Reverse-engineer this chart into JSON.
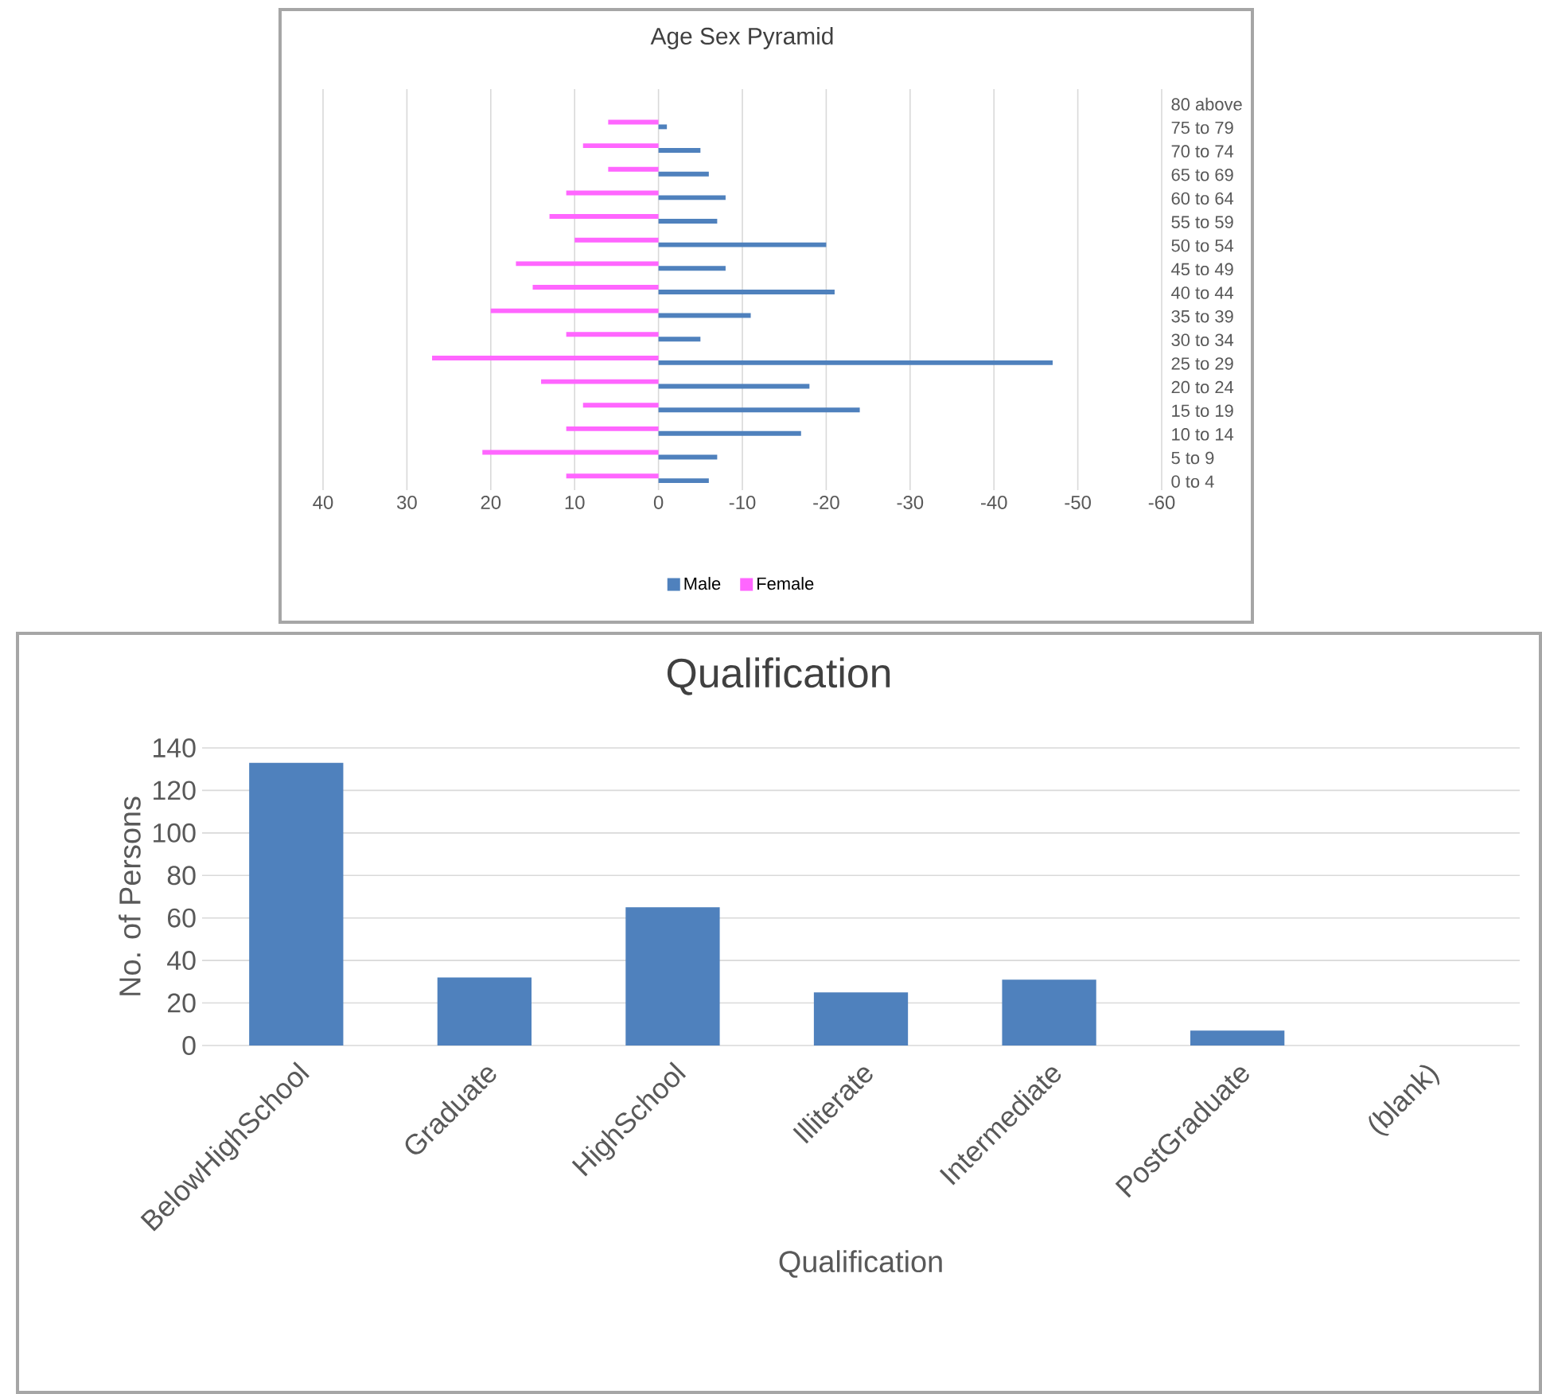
{
  "chart_data": [
    {
      "type": "bar",
      "orientation": "horizontal",
      "title": "Age Sex Pyramid",
      "categories": [
        "80 above",
        "75 to 79",
        "70 to 74",
        "65 to 69",
        "60 to 64",
        "55 to 59",
        "50 to 54",
        "45 to 49",
        "40 to 44",
        "35 to 39",
        "30 to 34",
        "25 to 29",
        "20 to 24",
        "15 to 19",
        "10 to 14",
        "5 to 9",
        "0 to 4"
      ],
      "series": [
        {
          "name": "Male",
          "color": "#4f81bd",
          "values": [
            0,
            -1,
            -5,
            -6,
            -8,
            -7,
            -20,
            -8,
            -21,
            -11,
            -5,
            -47,
            -18,
            -24,
            -17,
            -7,
            -6
          ]
        },
        {
          "name": "Female",
          "color": "#ff66ff",
          "values": [
            0,
            6,
            9,
            6,
            11,
            13,
            10,
            17,
            15,
            20,
            11,
            27,
            14,
            9,
            11,
            21,
            11
          ]
        }
      ],
      "xlim": [
        40,
        -60
      ],
      "xticks": [
        40,
        30,
        20,
        10,
        0,
        -10,
        -20,
        -30,
        -40,
        -50,
        -60
      ],
      "grid": "x",
      "legend": "bottom"
    },
    {
      "type": "bar",
      "title": "Qualification",
      "xlabel": "Qualification",
      "ylabel": "No. of Persons",
      "categories": [
        "BelowHighSchool",
        "Graduate",
        "HighSchool",
        "Illiterate",
        "Intermediate",
        "PostGraduate",
        "(blank)"
      ],
      "values": [
        133,
        32,
        65,
        25,
        31,
        7,
        null
      ],
      "color": "#4f81bd",
      "ylim": [
        0,
        140
      ],
      "yticks": [
        0,
        20,
        40,
        60,
        80,
        100,
        120,
        140
      ],
      "grid": "y"
    }
  ]
}
